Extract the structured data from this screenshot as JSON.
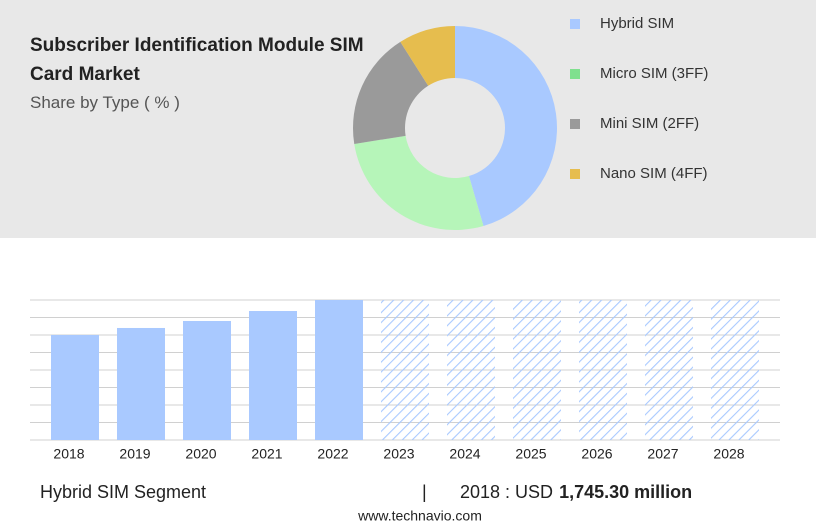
{
  "chart_data": [
    {
      "type": "pie",
      "title": "Subscriber Identification Module SIM Card Market",
      "subtitle": "Share by Type ( % )",
      "categories": [
        "Hybrid SIM",
        "Micro SIM (3FF)",
        "Mini SIM (2FF)",
        "Nano SIM (4FF)"
      ],
      "values": [
        45.5,
        27,
        18.5,
        9
      ],
      "colors": [
        "#a9c9ff",
        "#b6f5b9",
        "#9a9a9a",
        "#e6bd4e"
      ],
      "legend_colors": [
        "#a9c9ff",
        "#7fe08e",
        "#9a9a9a",
        "#e6bd4e"
      ]
    },
    {
      "type": "bar",
      "categories": [
        "2018",
        "2019",
        "2020",
        "2021",
        "2022",
        "2023",
        "2024",
        "2025",
        "2026",
        "2027",
        "2028"
      ],
      "values": [
        1745.3,
        1862,
        1978,
        2144,
        2327,
        null,
        null,
        null,
        null,
        null,
        null
      ],
      "color": "#a9c9ff",
      "ylim": [
        0,
        2327
      ]
    }
  ],
  "footer": {
    "segment": "Hybrid SIM Segment",
    "separator": "|",
    "label": "2018 : USD",
    "value": "1,745.30 million"
  },
  "source": "www.technavio.com"
}
